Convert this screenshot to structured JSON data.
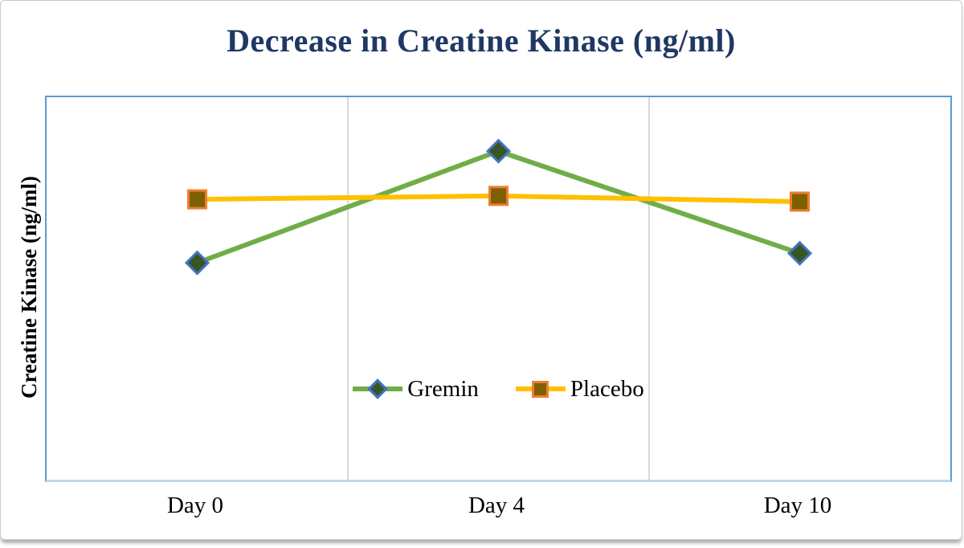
{
  "chart_data": {
    "type": "line",
    "title": "Decrease in Creatine Kinase (ng/ml)",
    "ylabel": "Creatine Kinase (ng/ml)",
    "xlabel": "",
    "categories": [
      "Day 0",
      "Day 4",
      "Day 10"
    ],
    "series": [
      {
        "name": "Gremin",
        "values": [
          0.567,
          0.859,
          0.592
        ],
        "line_color": "#70ad47",
        "marker": "diamond",
        "marker_fill": "#375623",
        "marker_stroke": "#4472c4"
      },
      {
        "name": "Placebo",
        "values": [
          0.733,
          0.742,
          0.727
        ],
        "line_color": "#ffc000",
        "marker": "square",
        "marker_fill": "#7f6000",
        "marker_stroke": "#ed7d31"
      }
    ],
    "ylim": [
      0,
      1
    ],
    "y_tick_labels_visible": false,
    "value_note": "y-axis shows no numeric ticks; values are fractions of plot-area height",
    "grid": "vertical lines at category boundaries",
    "legend_position": "inside-bottom-center"
  },
  "colors": {
    "title_text": "#1f3864",
    "plot_border": "#5b9bd5",
    "plot_border_bottom": "#bdd7ee",
    "gridline": "#d9d9d9",
    "axis_text": "#000000",
    "frame_border": "#c9c9c9"
  }
}
